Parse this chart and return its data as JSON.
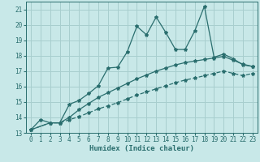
{
  "xlabel": "Humidex (Indice chaleur)",
  "bg_color": "#c8e8e8",
  "grid_color": "#a8cece",
  "line_color": "#2a6e6e",
  "xlim": [
    -0.5,
    23.5
  ],
  "ylim": [
    13,
    21.5
  ],
  "yticks": [
    13,
    14,
    15,
    16,
    17,
    18,
    19,
    20,
    21
  ],
  "xticks": [
    0,
    1,
    2,
    3,
    4,
    5,
    6,
    7,
    8,
    9,
    10,
    11,
    12,
    13,
    14,
    15,
    16,
    17,
    18,
    19,
    20,
    21,
    22,
    23
  ],
  "line1_x": [
    0,
    1,
    2,
    3,
    4,
    5,
    6,
    7,
    8,
    9,
    10,
    11,
    12,
    13,
    14,
    15,
    16,
    17,
    18,
    19,
    20,
    21,
    22,
    23
  ],
  "line1_y": [
    13.2,
    13.85,
    13.65,
    13.65,
    14.85,
    15.1,
    15.55,
    16.05,
    17.2,
    17.25,
    18.25,
    19.9,
    19.35,
    20.5,
    19.5,
    18.4,
    18.4,
    19.6,
    21.2,
    17.9,
    18.1,
    17.8,
    17.4,
    17.3
  ],
  "line2_x": [
    0,
    2,
    3,
    4,
    5,
    6,
    7,
    8,
    9,
    10,
    11,
    12,
    13,
    14,
    15,
    16,
    17,
    18,
    19,
    20,
    21,
    22,
    23
  ],
  "line2_y": [
    13.2,
    13.65,
    13.65,
    14.0,
    14.5,
    14.9,
    15.3,
    15.6,
    15.9,
    16.2,
    16.5,
    16.75,
    17.0,
    17.2,
    17.4,
    17.55,
    17.65,
    17.75,
    17.85,
    17.95,
    17.7,
    17.45,
    17.3
  ],
  "line3_x": [
    0,
    2,
    3,
    4,
    5,
    6,
    7,
    8,
    9,
    10,
    11,
    12,
    13,
    14,
    15,
    16,
    17,
    18,
    19,
    20,
    21,
    22,
    23
  ],
  "line3_y": [
    13.2,
    13.65,
    13.65,
    13.85,
    14.05,
    14.3,
    14.55,
    14.75,
    14.95,
    15.2,
    15.45,
    15.65,
    15.85,
    16.05,
    16.25,
    16.42,
    16.55,
    16.7,
    16.85,
    17.0,
    16.85,
    16.7,
    16.85
  ]
}
